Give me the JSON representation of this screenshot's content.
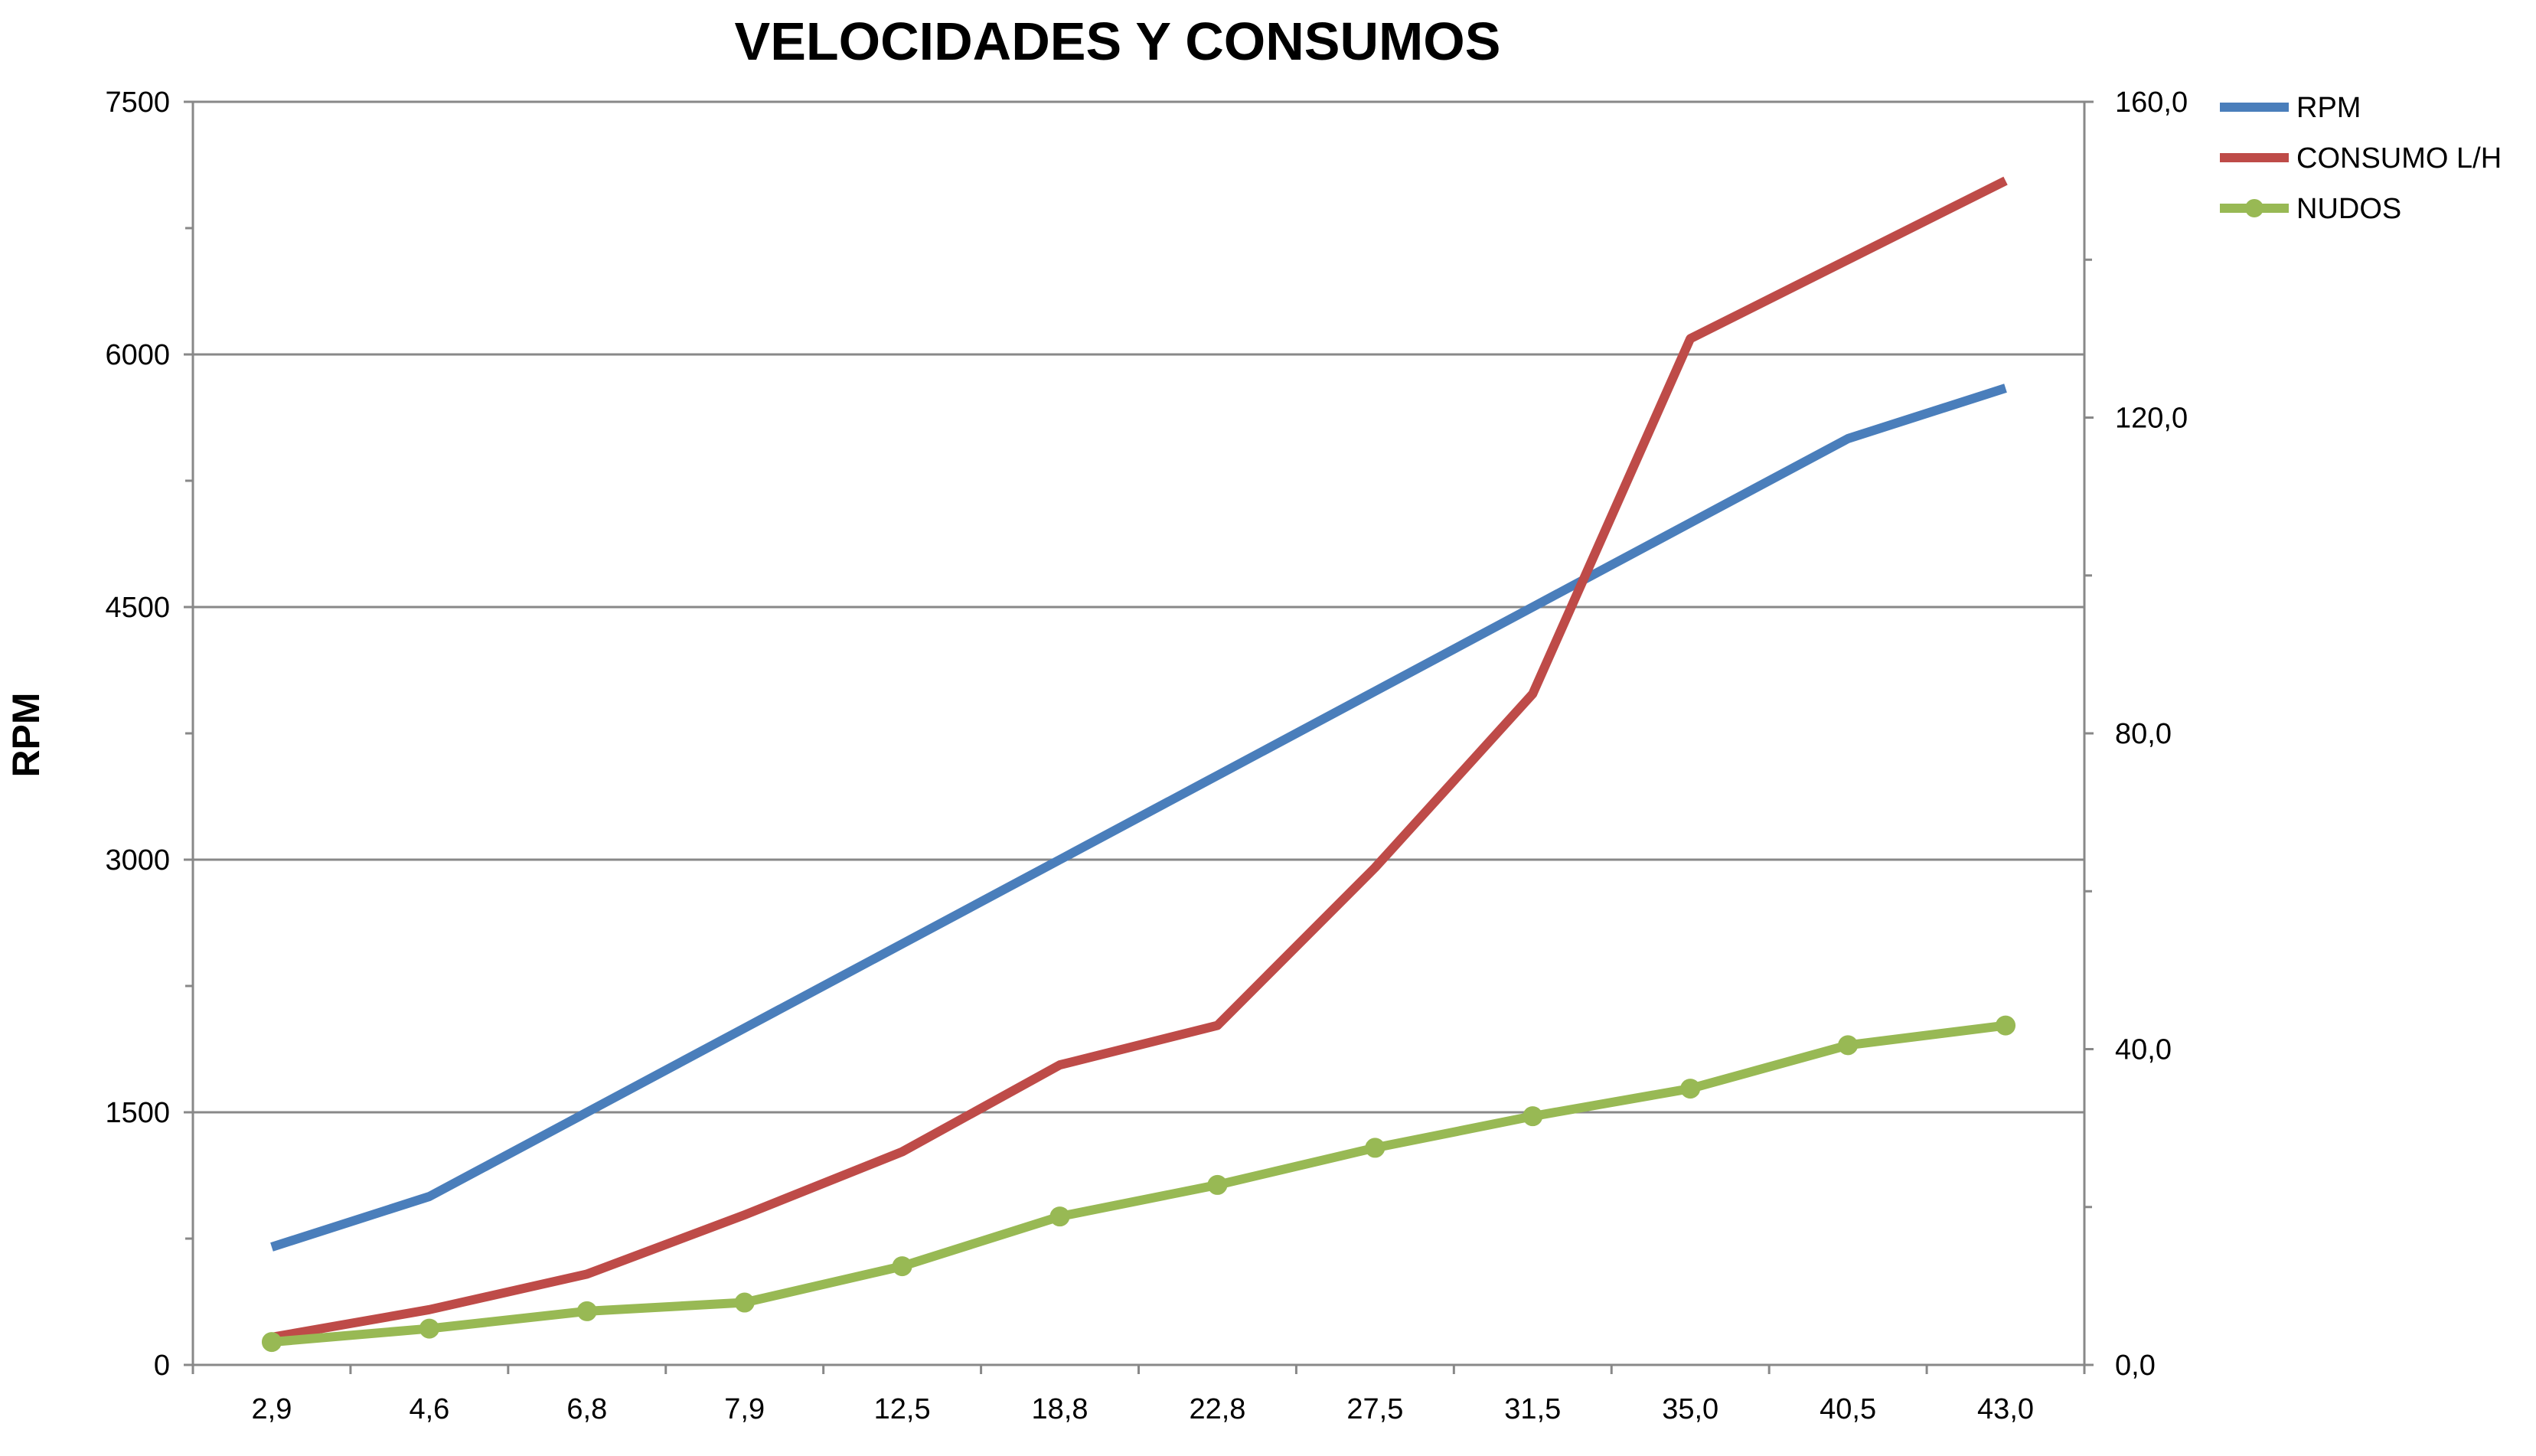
{
  "chart_data": {
    "type": "line",
    "title": "VELOCIDADES Y CONSUMOS",
    "ylabel": "RPM",
    "xlabel": "",
    "categories": [
      "2,9",
      "4,6",
      "6,8",
      "7,9",
      "12,5",
      "18,8",
      "22,8",
      "27,5",
      "31,5",
      "35,0",
      "40,5",
      "43,0"
    ],
    "ylim": [
      0,
      7500
    ],
    "y_ticks": [
      "0",
      "1500",
      "3000",
      "4500",
      "6000",
      "7500"
    ],
    "y2lim": [
      0,
      160
    ],
    "y2_ticks": [
      "0,0",
      "40,0",
      "80,0",
      "120,0",
      "160,0"
    ],
    "grid": true,
    "legend_position": "top-right",
    "series": [
      {
        "name": "RPM",
        "axis": "left",
        "color": "#4a7ebb",
        "markers": false,
        "values": [
          700,
          1000,
          1500,
          2000,
          2500,
          3000,
          3500,
          4000,
          4500,
          5000,
          5500,
          5800
        ]
      },
      {
        "name": "CONSUMO L/H",
        "axis": "right",
        "color": "#be4b48",
        "markers": false,
        "values": [
          3.5,
          7.0,
          11.5,
          19.0,
          27.0,
          38.0,
          43.0,
          63.0,
          85.0,
          130.0,
          140.0,
          150.0
        ]
      },
      {
        "name": "NUDOS",
        "axis": "right",
        "color": "#98b954",
        "markers": true,
        "values": [
          2.9,
          4.6,
          6.8,
          7.9,
          12.5,
          18.8,
          22.8,
          27.5,
          31.5,
          35.0,
          40.5,
          43.0
        ]
      }
    ]
  }
}
